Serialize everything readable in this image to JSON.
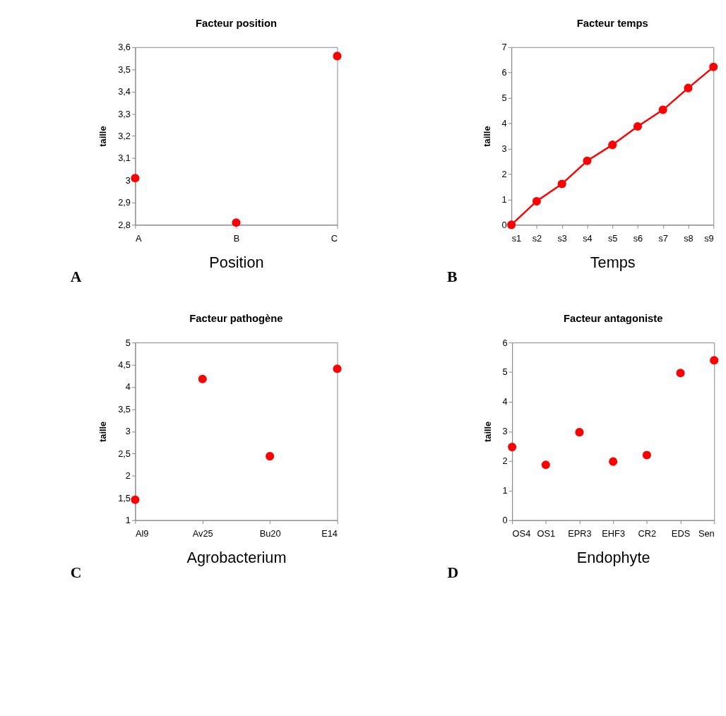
{
  "chart_data": [
    {
      "type": "scatter",
      "title": "Facteur position",
      "xlabel": "Position",
      "ylabel": "taille",
      "categories": [
        "A",
        "B",
        "C"
      ],
      "series": [
        {
          "color": "#ff0000",
          "values": [
            3.01,
            2.81,
            3.56
          ]
        }
      ],
      "ylim": [
        2.8,
        3.6
      ],
      "yticks": [
        {
          "value": 2.8,
          "label": "2,8"
        },
        {
          "value": 2.9,
          "label": "2,9"
        },
        3,
        {
          "value": 3.1,
          "label": "3,1"
        },
        {
          "value": 3.2,
          "label": "3,2"
        },
        {
          "value": 3.3,
          "label": "3,3"
        },
        {
          "value": 3.4,
          "label": "3,4"
        },
        {
          "value": 3.5,
          "label": "3,5"
        },
        {
          "value": 3.6,
          "label": "3,6"
        }
      ],
      "grid": false,
      "marker": "circle",
      "annotations": [
        "A"
      ]
    },
    {
      "type": "line",
      "title": "Facteur temps",
      "xlabel": "Temps",
      "ylabel": "taille",
      "categories": [
        "s1",
        "s2",
        "s3",
        "s4",
        "s5",
        "s6",
        "s7",
        "s8",
        "s9"
      ],
      "series": [
        {
          "color": "#ff0000",
          "values": [
            0,
            0.93,
            1.61,
            2.52,
            3.15,
            3.88,
            4.53,
            5.39,
            6.22
          ]
        }
      ],
      "ylim": [
        0,
        7
      ],
      "yticks": [
        0,
        1,
        2,
        3,
        4,
        5,
        6,
        7
      ],
      "grid": false,
      "marker": "circle",
      "line_style": "solid",
      "annotations": [
        "B"
      ]
    },
    {
      "type": "scatter",
      "title": "Facteur pathogène",
      "xlabel": "Agrobacterium",
      "ylabel": "taille",
      "categories": [
        "Al9",
        "Av25",
        "Bu20",
        "E14"
      ],
      "series": [
        {
          "color": "#ff0000",
          "values": [
            1.46,
            4.18,
            2.44,
            4.41
          ]
        }
      ],
      "ylim": [
        1,
        5
      ],
      "yticks": [
        1,
        {
          "value": 1.5,
          "label": "1,5"
        },
        2,
        {
          "value": 2.5,
          "label": "2,5"
        },
        3,
        {
          "value": 3.5,
          "label": "3,5"
        },
        4,
        {
          "value": 4.5,
          "label": "4,5"
        },
        5
      ],
      "grid": false,
      "marker": "circle",
      "annotations": [
        "C"
      ]
    },
    {
      "type": "scatter",
      "title": "Facteur antagoniste",
      "xlabel": "Endophyte",
      "ylabel": "taille",
      "categories": [
        "OS4",
        "OS1",
        "EPR3",
        "EHF3",
        "CR2",
        "EDS",
        "Sen"
      ],
      "series": [
        {
          "color": "#ff0000",
          "values": [
            2.47,
            1.87,
            2.97,
            1.98,
            2.2,
            4.97,
            5.4
          ]
        }
      ],
      "ylim": [
        0,
        6
      ],
      "yticks": [
        0,
        1,
        2,
        3,
        4,
        5,
        6
      ],
      "grid": false,
      "marker": "circle",
      "annotations": [
        "D"
      ]
    }
  ]
}
